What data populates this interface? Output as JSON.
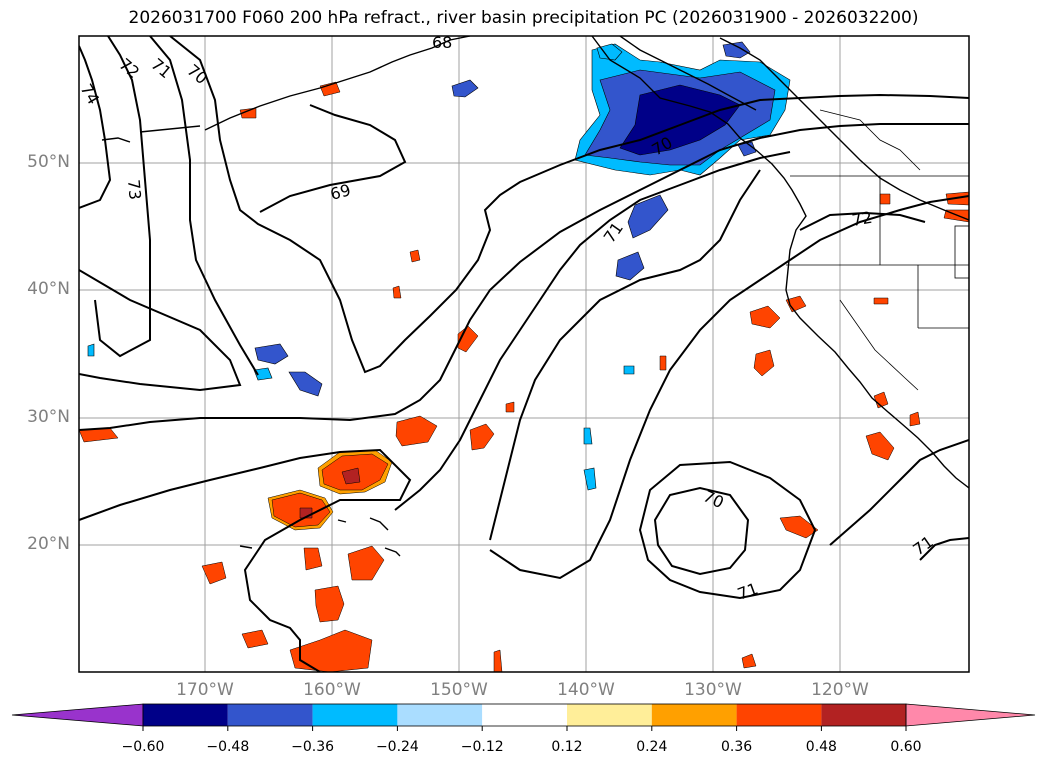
{
  "title": "2026031700 F060 200 hPa refract., river basin precipitation PC (2026031900 - 2026032200)",
  "latitude_labels": [
    "50°N",
    "40°N",
    "30°N",
    "20°N"
  ],
  "longitude_labels": [
    "170°W",
    "160°W",
    "150°W",
    "140°W",
    "130°W",
    "120°W"
  ],
  "contour_labels": [
    "68",
    "70",
    "71",
    "72",
    "74",
    "73",
    "69",
    "70",
    "71",
    "72",
    "70",
    "71",
    "71"
  ],
  "colorbar": {
    "ticks": [
      "−0.60",
      "−0.48",
      "−0.36",
      "−0.24",
      "−0.12",
      "0.12",
      "0.24",
      "0.36",
      "0.48",
      "0.60"
    ],
    "colors": [
      "#9933cc",
      "#000088",
      "#3355cc",
      "#00bbff",
      "#aaddff",
      "#ffffff",
      "#ffee99",
      "#ffa000",
      "#ff4400",
      "#b22222",
      "#ff88aa"
    ]
  },
  "colors": {
    "grid": "#999999",
    "contour": "#000000",
    "coast": "#000000"
  }
}
